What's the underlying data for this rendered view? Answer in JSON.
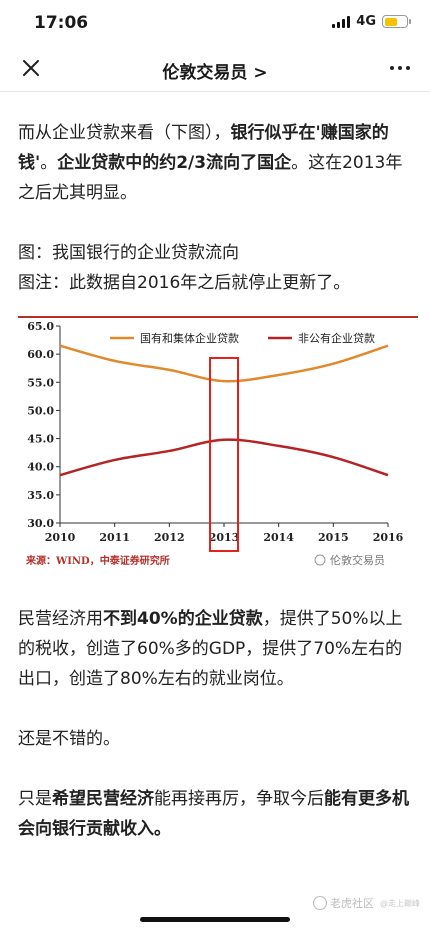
{
  "status": {
    "time": "17:06",
    "network": "4G",
    "battery_level": 0.6
  },
  "nav": {
    "title": "伦敦交易员 >"
  },
  "article": {
    "p1": [
      {
        "text": "而从企业贷款来看（下图），",
        "bold": false
      },
      {
        "text": "银行似乎在'赚国家的钱'",
        "bold": true
      },
      {
        "text": "。",
        "bold": false
      },
      {
        "text": "企业贷款中的约2/3流向了国企",
        "bold": true
      },
      {
        "text": "。这在2013年之后尤其明显。",
        "bold": false
      }
    ],
    "fig_caption": "图：我国银行的企业贷款流向",
    "fig_note": "图注：此数据自2016年之后就停止更新了。",
    "p2": [
      {
        "text": "民营经济用",
        "bold": false
      },
      {
        "text": "不到40%的企业贷款",
        "bold": true
      },
      {
        "text": "，提供了50%以上的税收，创造了60%多的GDP，提供了70%左右的出口，创造了80%左右的就业岗位。",
        "bold": false
      }
    ],
    "p3": [
      {
        "text": "还是不错的。",
        "bold": false
      }
    ],
    "p4": [
      {
        "text": "只是",
        "bold": false
      },
      {
        "text": "希望民营经济",
        "bold": true
      },
      {
        "text": "能再接再厉，争取今后",
        "bold": false
      },
      {
        "text": "能有更多机会向银行贡献收入。",
        "bold": true
      }
    ]
  },
  "chart_data": {
    "type": "line",
    "x": [
      2010,
      2011,
      2012,
      2013,
      2014,
      2015,
      2016
    ],
    "series": [
      {
        "name": "国有和集体企业贷款",
        "color": "#e08a2c",
        "values": [
          61.5,
          58.8,
          57.2,
          55.2,
          56.3,
          58.3,
          61.5
        ]
      },
      {
        "name": "非公有企业贷款",
        "color": "#b52424",
        "values": [
          38.5,
          41.2,
          42.8,
          44.8,
          43.7,
          41.7,
          38.5
        ]
      }
    ],
    "ylim": [
      30,
      65
    ],
    "yticks": [
      "65.0",
      "60.0",
      "55.0",
      "50.0",
      "45.0",
      "40.0",
      "35.0",
      "30.0"
    ],
    "xticks": [
      "2010",
      "2011",
      "2012",
      "2013",
      "2014",
      "2015",
      "2016"
    ],
    "highlight_x": 2013,
    "highlight_color": "#e3221c",
    "source": "来源：WIND，中泰证券研究所",
    "watermark": "伦敦交易员",
    "legend_position": "top"
  },
  "footer": {
    "watermark": "老虎社区",
    "watermark_sub": "@走上巅峰"
  }
}
